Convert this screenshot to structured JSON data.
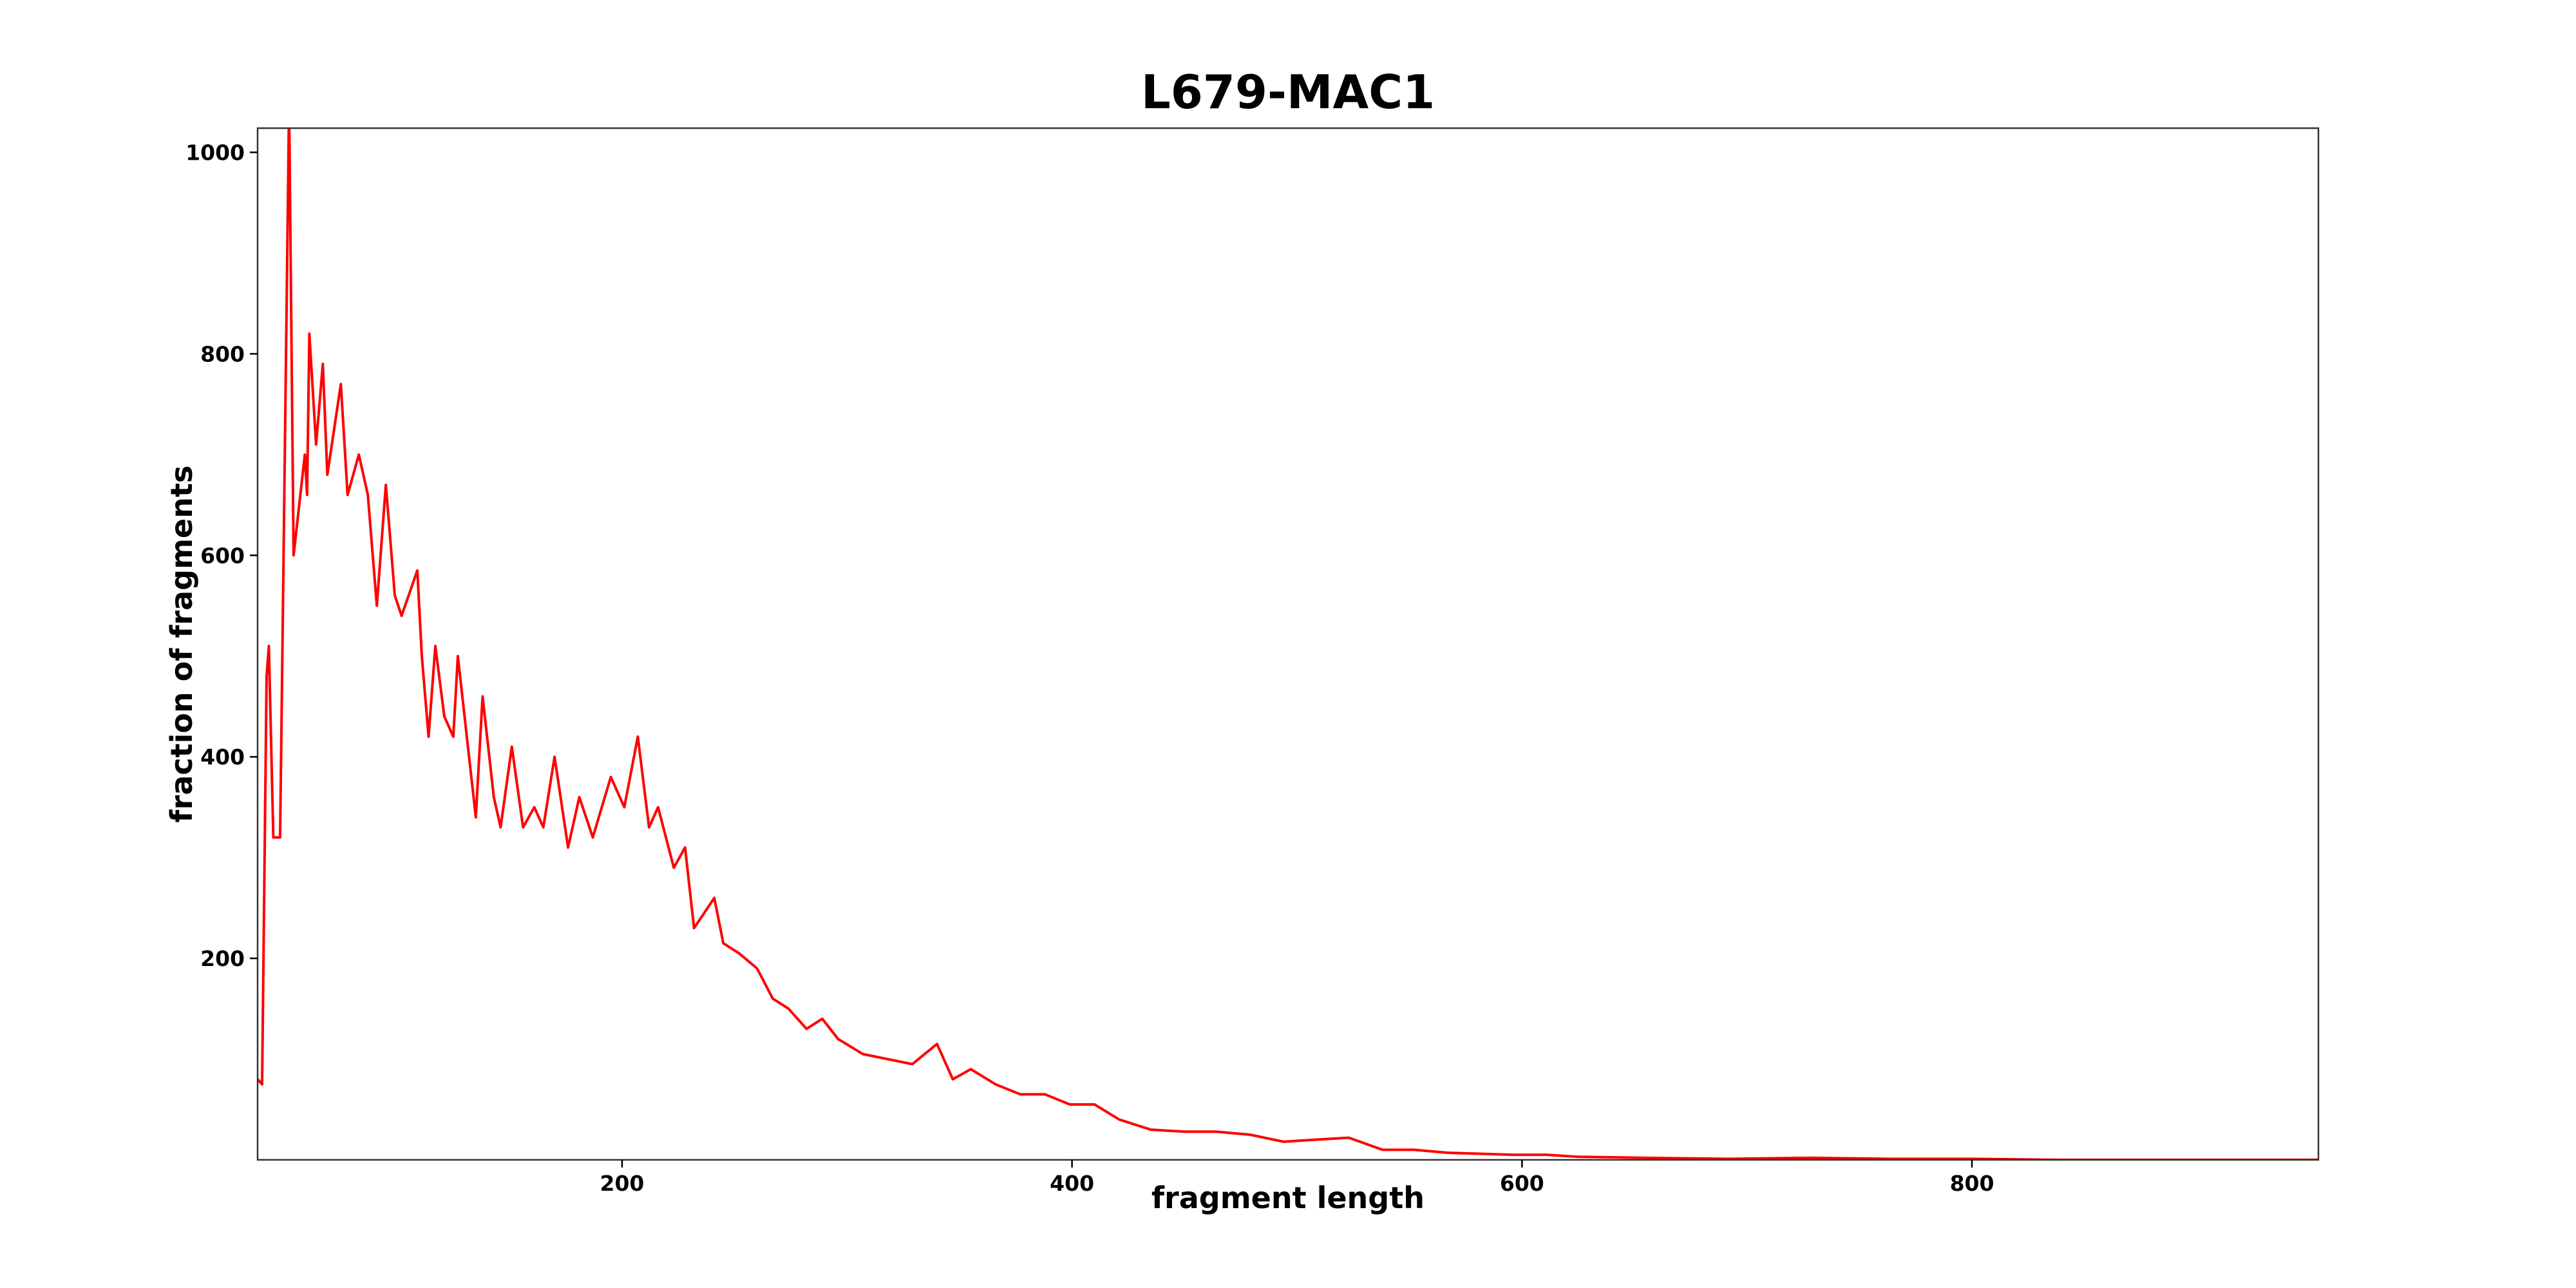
{
  "chart_data": {
    "type": "line",
    "title": "L679-MAC1",
    "xlabel": "fragment length",
    "ylabel": "fraction of fragments",
    "color": "#ff0000",
    "x": [
      38,
      40,
      42,
      43,
      45,
      48,
      49,
      52,
      54,
      59,
      60,
      61,
      64,
      67,
      69,
      75,
      78,
      83,
      87,
      91,
      95,
      99,
      102,
      109,
      111,
      114,
      117,
      121,
      125,
      127,
      131,
      135,
      138,
      143,
      146,
      151,
      156,
      161,
      165,
      170,
      176,
      181,
      187,
      195,
      201,
      207,
      212,
      216,
      223,
      228,
      232,
      241,
      245,
      252,
      260,
      267,
      274,
      282,
      289,
      296,
      307,
      318,
      329,
      340,
      347,
      355,
      366,
      377,
      388,
      399,
      410,
      421,
      435,
      450,
      464,
      479,
      494,
      508,
      523,
      538,
      552,
      567,
      582,
      596,
      611,
      625,
      655,
      691,
      728,
      764,
      801,
      838,
      874,
      954
    ],
    "values": [
      80,
      75,
      480,
      510,
      320,
      320,
      500,
      1050,
      600,
      700,
      660,
      820,
      710,
      790,
      680,
      770,
      660,
      700,
      660,
      550,
      670,
      560,
      540,
      585,
      500,
      420,
      510,
      440,
      420,
      500,
      420,
      340,
      460,
      360,
      330,
      410,
      330,
      350,
      330,
      400,
      310,
      360,
      320,
      380,
      350,
      420,
      330,
      350,
      290,
      310,
      230,
      260,
      215,
      205,
      190,
      160,
      150,
      130,
      140,
      120,
      105,
      100,
      95,
      115,
      80,
      90,
      75,
      65,
      65,
      55,
      55,
      40,
      30,
      28,
      28,
      25,
      18,
      20,
      22,
      10,
      10,
      7,
      6,
      5,
      5,
      3,
      2,
      1,
      2,
      1,
      1,
      0,
      0,
      0
    ],
    "xlim": [
      38,
      954
    ],
    "ylim": [
      0,
      1024
    ],
    "xticks": [
      200,
      400,
      600,
      800
    ],
    "yticks": [
      200,
      400,
      600,
      800,
      1000
    ]
  }
}
